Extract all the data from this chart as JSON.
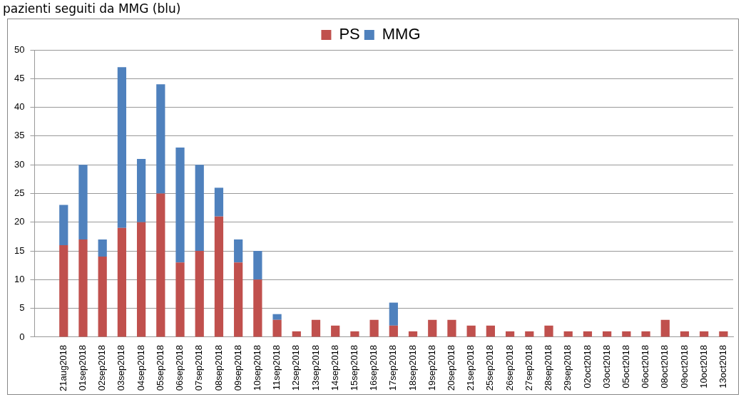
{
  "chart_data": {
    "type": "bar",
    "title": "pazienti seguiti da MMG (blu)",
    "stacked": true,
    "categories": [
      null,
      "21aug2018",
      "01sep2018",
      "02sep2018",
      "03sep2018",
      "04sep2018",
      "05sep2018",
      "06sep2018",
      "07sep2018",
      "08sep2018",
      "09sep2018",
      "10sep2018",
      "11sep2018",
      "12sep2018",
      "13sep2018",
      "14sep2018",
      "15sep2018",
      "16sep2018",
      "17sep2018",
      "18sep2018",
      "19sep2018",
      "20sep2018",
      "21sep2018",
      "25sep2018",
      "26sep2018",
      "27sep2018",
      "28sep2018",
      "29sep2018",
      "02oct2018",
      "03oct2018",
      "05oct2018",
      "06oct2018",
      "08oct2018",
      "09oct2018",
      "10oct2018",
      "13oct2018"
    ],
    "series": [
      {
        "name": "PS",
        "color": "#c0504d",
        "values": [
          null,
          16,
          17,
          14,
          19,
          20,
          25,
          13,
          15,
          21,
          13,
          10,
          3,
          1,
          3,
          2,
          1,
          3,
          2,
          1,
          3,
          3,
          2,
          2,
          1,
          1,
          2,
          1,
          1,
          1,
          1,
          1,
          3,
          1,
          1,
          1
        ]
      },
      {
        "name": "MMG",
        "color": "#4f81bd",
        "values": [
          null,
          7,
          13,
          3,
          28,
          11,
          19,
          20,
          15,
          5,
          4,
          5,
          1,
          0,
          0,
          0,
          0,
          0,
          4,
          0,
          0,
          0,
          0,
          0,
          0,
          0,
          0,
          0,
          0,
          0,
          0,
          0,
          0,
          0,
          0,
          0
        ]
      }
    ],
    "ylim": [
      0,
      50
    ],
    "yticks": [
      0,
      5,
      10,
      15,
      20,
      25,
      30,
      35,
      40,
      45,
      50
    ],
    "grid": "y",
    "legend": "top"
  }
}
